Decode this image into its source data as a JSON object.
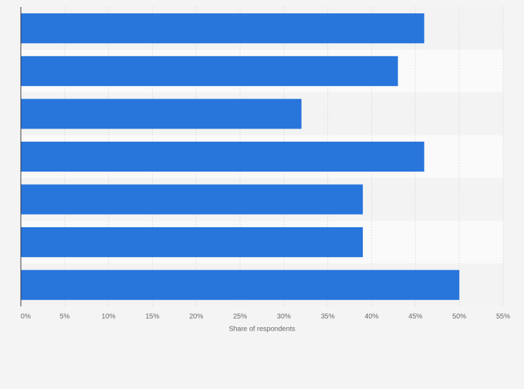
{
  "chart_data": {
    "type": "hbar",
    "categories": [
      null,
      null,
      null,
      null,
      null,
      null,
      null
    ],
    "values": [
      46,
      43,
      32,
      46,
      39,
      39,
      50
    ],
    "color": "#2875dc",
    "xlabel": "Share of respondents",
    "xlim": [
      0,
      55
    ],
    "xticks": [
      {
        "value": 0,
        "label": "0%"
      },
      {
        "value": 5,
        "label": "5%"
      },
      {
        "value": 10,
        "label": "10%"
      },
      {
        "value": 15,
        "label": "15%"
      },
      {
        "value": 20,
        "label": "20%"
      },
      {
        "value": 25,
        "label": "25%"
      },
      {
        "value": 30,
        "label": "30%"
      },
      {
        "value": 35,
        "label": "35%"
      },
      {
        "value": 40,
        "label": "40%"
      },
      {
        "value": 45,
        "label": "45%"
      },
      {
        "value": 50,
        "label": "50%"
      },
      {
        "value": 55,
        "label": "55%"
      }
    ],
    "grid": true
  }
}
